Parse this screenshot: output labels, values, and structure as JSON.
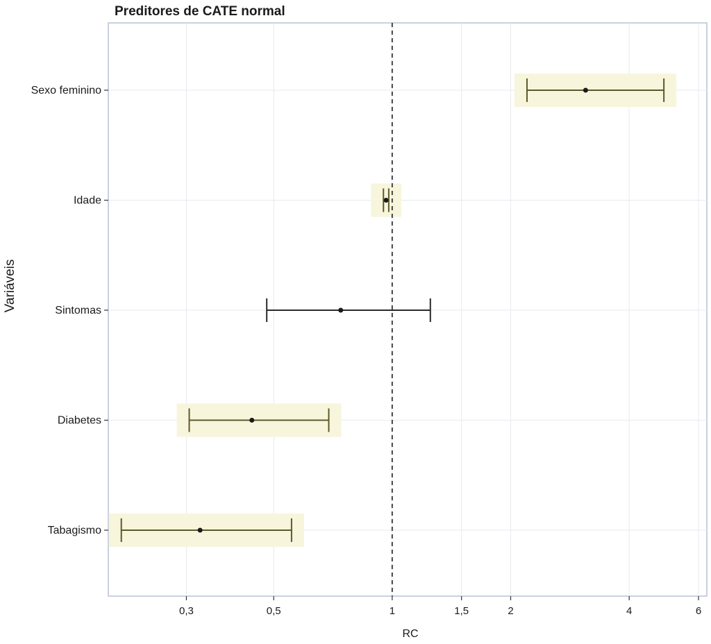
{
  "colors": {
    "highlight": "#f7f5dc",
    "highlight_bar": "#5c5a2a",
    "plain_bar": "#2a2a2a",
    "point": "#1a1a1a",
    "grid": "#e8eaf0",
    "axis": "#b8c0d6",
    "reference": "#444444"
  },
  "chart_data": {
    "type": "forest",
    "title": "Preditores de CATE normal",
    "xlabel": "RC",
    "ylabel": "Variáveis",
    "x_scale": "log",
    "xlim": [
      0.19,
      6.3
    ],
    "reference_line": 1,
    "x_ticks": [
      {
        "value": 0.3,
        "label": "0,3"
      },
      {
        "value": 0.5,
        "label": "0,5"
      },
      {
        "value": 1,
        "label": "1"
      },
      {
        "value": 1.5,
        "label": "1,5"
      },
      {
        "value": 2,
        "label": "2"
      },
      {
        "value": 4,
        "label": "4"
      },
      {
        "value": 6,
        "label": "6"
      }
    ],
    "rows": [
      {
        "label": "Sexo feminino",
        "or": 3.1,
        "lower": 2.2,
        "upper": 4.9,
        "significant": true
      },
      {
        "label": "Idade",
        "or": 0.965,
        "lower": 0.95,
        "upper": 0.98,
        "significant": true
      },
      {
        "label": "Sintomas",
        "or": 0.74,
        "lower": 0.48,
        "upper": 1.25,
        "significant": false
      },
      {
        "label": "Diabetes",
        "or": 0.44,
        "lower": 0.305,
        "upper": 0.69,
        "significant": true
      },
      {
        "label": "Tabagismo",
        "or": 0.325,
        "lower": 0.205,
        "upper": 0.555,
        "significant": true
      }
    ]
  }
}
